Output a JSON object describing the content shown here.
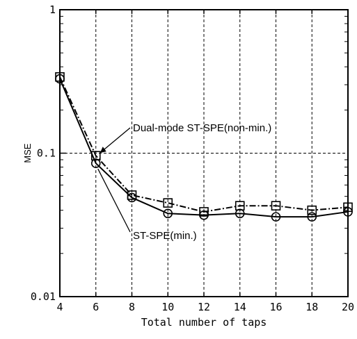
{
  "chart_data": {
    "type": "line",
    "xlabel": "Total number of taps",
    "ylabel": "MSE",
    "xlim": [
      4,
      20
    ],
    "ylim": [
      0.01,
      1
    ],
    "yscale": "log",
    "grid": true,
    "xticks": [
      4,
      6,
      8,
      10,
      12,
      14,
      16,
      18,
      20
    ],
    "xtick_labels": [
      "4",
      "6",
      "8",
      "10",
      "12",
      "14",
      "16",
      "18",
      "20"
    ],
    "yticks": [
      0.01,
      0.1,
      1
    ],
    "ytick_labels": [
      "0.01",
      "0.1",
      "1"
    ],
    "series": [
      {
        "marker": "square",
        "line_style": "dash-dot",
        "x": [
          4,
          6,
          8,
          10,
          12,
          14,
          16,
          18,
          20
        ],
        "y": [
          0.34,
          0.096,
          0.051,
          0.045,
          0.039,
          0.043,
          0.043,
          0.04,
          0.042
        ]
      },
      {
        "marker": "circle",
        "line_style": "solid",
        "x": [
          4,
          6,
          8,
          10,
          12,
          14,
          16,
          18,
          20
        ],
        "y": [
          0.33,
          0.085,
          0.049,
          0.038,
          0.037,
          0.038,
          0.036,
          0.036,
          0.039
        ]
      }
    ],
    "annotations": [
      {
        "text": "Dual-mode ST-SPE(non-min.)",
        "points_to": {
          "x": 6,
          "y": 0.096
        }
      },
      {
        "text": "ST-SPE(min.)",
        "points_to": {
          "x": 6,
          "y": 0.085
        }
      }
    ]
  }
}
